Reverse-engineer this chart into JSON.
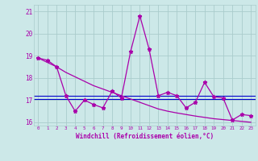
{
  "xlabel": "Windchill (Refroidissement éolien,°C)",
  "x": [
    0,
    1,
    2,
    3,
    4,
    5,
    6,
    7,
    8,
    9,
    10,
    11,
    12,
    13,
    14,
    15,
    16,
    17,
    18,
    19,
    20,
    21,
    22,
    23
  ],
  "y_main": [
    18.9,
    18.8,
    18.5,
    17.2,
    16.5,
    17.0,
    16.8,
    16.65,
    17.4,
    17.1,
    19.2,
    20.8,
    19.3,
    17.2,
    17.35,
    17.2,
    16.65,
    16.9,
    17.8,
    17.15,
    17.1,
    16.1,
    16.35,
    16.3
  ],
  "y_trend": [
    18.9,
    18.7,
    18.5,
    18.25,
    18.05,
    17.85,
    17.65,
    17.5,
    17.35,
    17.2,
    17.05,
    16.9,
    16.75,
    16.6,
    16.5,
    16.42,
    16.35,
    16.28,
    16.22,
    16.16,
    16.12,
    16.08,
    16.04,
    16.0
  ],
  "y_hline1": 17.2,
  "y_hline2": 17.05,
  "bg_color": "#cce8e8",
  "line_color": "#aa00aa",
  "hline_color": "#0000cc",
  "grid_color": "#aacccc",
  "ylim": [
    15.85,
    21.3
  ],
  "xlim": [
    -0.5,
    23.5
  ],
  "yticks": [
    16,
    17,
    18,
    19,
    20,
    21
  ],
  "xticks": [
    0,
    1,
    2,
    3,
    4,
    5,
    6,
    7,
    8,
    9,
    10,
    11,
    12,
    13,
    14,
    15,
    16,
    17,
    18,
    19,
    20,
    21,
    22,
    23
  ]
}
